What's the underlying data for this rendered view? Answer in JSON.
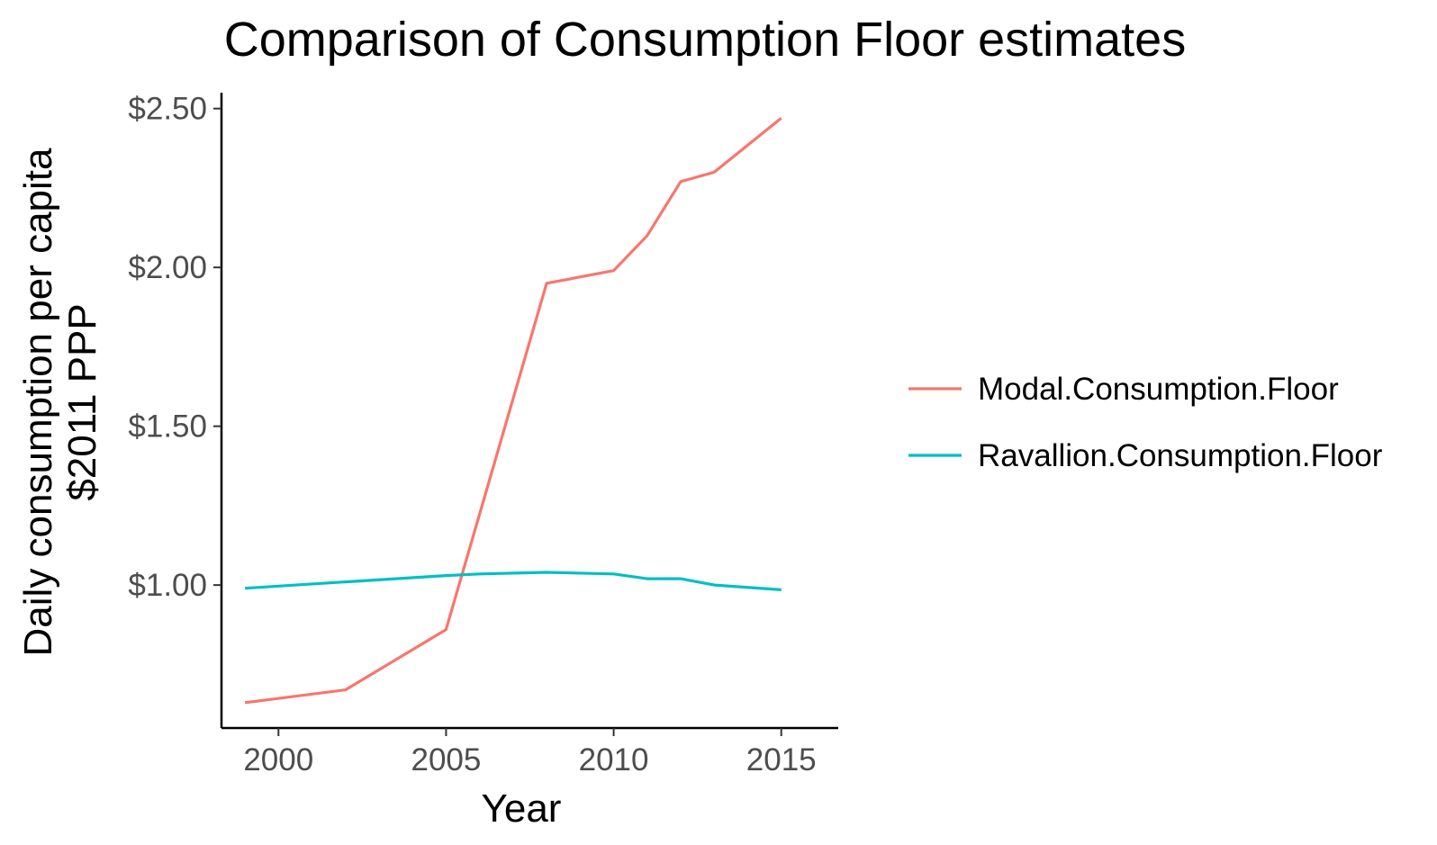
{
  "chart_data": {
    "type": "line",
    "title": "Comparison of Consumption Floor estimates",
    "xlabel": "Year",
    "ylabel": [
      "Daily consumption per capita",
      "$2011 PPP"
    ],
    "xlim": [
      1998.3,
      2016.7
    ],
    "ylim": [
      0.55,
      2.55
    ],
    "x_ticks": [
      2000,
      2005,
      2010,
      2015
    ],
    "x_tick_labels": [
      "2000",
      "2005",
      "2010",
      "2015"
    ],
    "y_ticks": [
      1.0,
      1.5,
      2.0,
      2.5
    ],
    "y_tick_labels": [
      "$1.00",
      "$1.50",
      "$2.00",
      "$2.50"
    ],
    "grid": false,
    "legend_position": "right",
    "series": [
      {
        "name": "Modal.Consumption.Floor",
        "color": "#F8766D",
        "x": [
          1999,
          2002,
          2005,
          2008,
          2010,
          2011,
          2012,
          2013,
          2015
        ],
        "y": [
          0.63,
          0.67,
          0.86,
          1.95,
          1.99,
          2.1,
          2.27,
          2.3,
          2.47
        ]
      },
      {
        "name": "Ravallion.Consumption.Floor",
        "color": "#00BFC4",
        "x": [
          1999,
          2002,
          2005,
          2006,
          2008,
          2010,
          2011,
          2012,
          2013,
          2015
        ],
        "y": [
          0.99,
          1.01,
          1.03,
          1.035,
          1.04,
          1.035,
          1.02,
          1.02,
          1.0,
          0.985
        ]
      }
    ]
  }
}
